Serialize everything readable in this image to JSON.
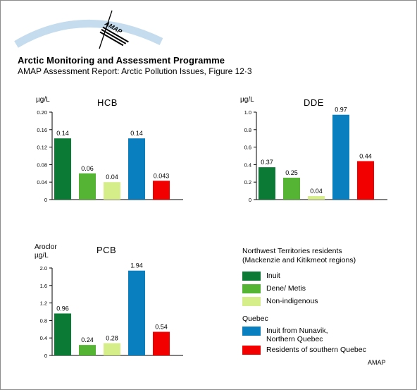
{
  "header": {
    "title": "Arctic Monitoring and Assessment Programme",
    "subtitle": "AMAP Assessment Report: Arctic Pollution Issues, Figure 12·3"
  },
  "logo": {
    "text": "AMAP"
  },
  "colors": {
    "inuit_nwt": "#0a7a34",
    "dene_metis": "#56b435",
    "non_indigenous": "#d6ee8a",
    "inuit_nunavik": "#0a7fc0",
    "southern_quebec": "#f20000"
  },
  "chart_data": [
    {
      "type": "bar",
      "title": "HCB",
      "ylabel": "µg/L",
      "ylabel2": "",
      "ylim": [
        0,
        0.2
      ],
      "yticks": [
        "0",
        "0.04",
        "0.08",
        "0.12",
        "0.16",
        "0.20"
      ],
      "categories": [
        "Inuit",
        "Dene/ Metis",
        "Non-indigenous",
        "Inuit from Nunavik, Northern Quebec",
        "Residents of southern Quebec"
      ],
      "values": [
        0.14,
        0.06,
        0.04,
        0.14,
        0.043
      ],
      "labels": [
        "0.14",
        "0.06",
        "0.04",
        "0.14",
        "0.043"
      ]
    },
    {
      "type": "bar",
      "title": "DDE",
      "ylabel": "µg/L",
      "ylabel2": "",
      "ylim": [
        0,
        1.0
      ],
      "yticks": [
        "0",
        "0.2",
        "0.4",
        "0.6",
        "0.8",
        "1.0"
      ],
      "categories": [
        "Inuit",
        "Dene/ Metis",
        "Non-indigenous",
        "Inuit from Nunavik, Northern Quebec",
        "Residents of southern Quebec"
      ],
      "values": [
        0.37,
        0.25,
        0.04,
        0.97,
        0.44
      ],
      "labels": [
        "0.37",
        "0.25",
        "0.04",
        "0.97",
        "0.44"
      ]
    },
    {
      "type": "bar",
      "title": "PCB",
      "ylabel": "Aroclor",
      "ylabel2": "µg/L",
      "ylim": [
        0,
        2.0
      ],
      "yticks": [
        "0",
        "0.4",
        "0.8",
        "1.2",
        "1.6",
        "2.0"
      ],
      "categories": [
        "Inuit",
        "Dene/ Metis",
        "Non-indigenous",
        "Inuit from Nunavik, Northern Quebec",
        "Residents of southern Quebec"
      ],
      "values": [
        0.96,
        0.24,
        0.28,
        1.94,
        0.54
      ],
      "labels": [
        "0.96",
        "0.24",
        "0.28",
        "1.94",
        "0.54"
      ]
    }
  ],
  "legend": {
    "group1_heading_line1": "Northwest Territories residents",
    "group1_heading_line2": "(Mackenzie and Kitikmeot regions)",
    "inuit": "Inuit",
    "dene_metis": "Dene/ Metis",
    "non_indigenous": "Non-indigenous",
    "group2_heading": "Quebec",
    "nunavik_line1": "Inuit from Nunavik,",
    "nunavik_line2": "Northern Quebec",
    "southern_quebec": "Residents of southern Quebec"
  },
  "footer": {
    "credit": "AMAP"
  }
}
